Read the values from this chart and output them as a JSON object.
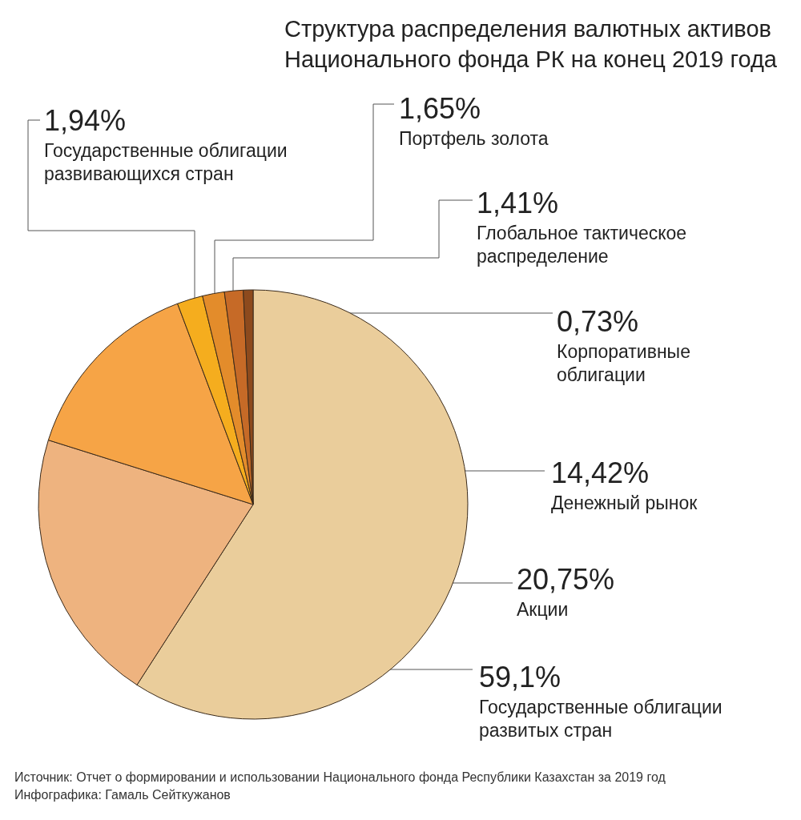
{
  "chart_data": {
    "type": "pie",
    "title": "Структура распределения валютных активов Национального фонда РК на конец 2019 года",
    "categories": [
      "Государственные облигации развитых стран",
      "Акции",
      "Денежный рынок",
      "Государственные облигации развивающихся стран",
      "Портфель золота",
      "Глобальное тактическое распределение",
      "Корпоративные облигации"
    ],
    "values": [
      59.1,
      20.75,
      14.42,
      1.94,
      1.65,
      1.41,
      0.73
    ],
    "colors": [
      "#eacd9b",
      "#eeb37f",
      "#f6a446",
      "#f5ad1e",
      "#e38c2b",
      "#c66a27",
      "#8d4a1d"
    ],
    "value_labels": [
      "59,1%",
      "20,75%",
      "14,42%",
      "1,94%",
      "1,65%",
      "1,41%",
      "0,73%"
    ],
    "legend": false,
    "annotations": [
      "Источник: Отчет о формировании и использовании Национального фонда Республики Казахстан за 2019 год",
      "Инфографика: Гамаль Сейткужанов"
    ]
  }
}
